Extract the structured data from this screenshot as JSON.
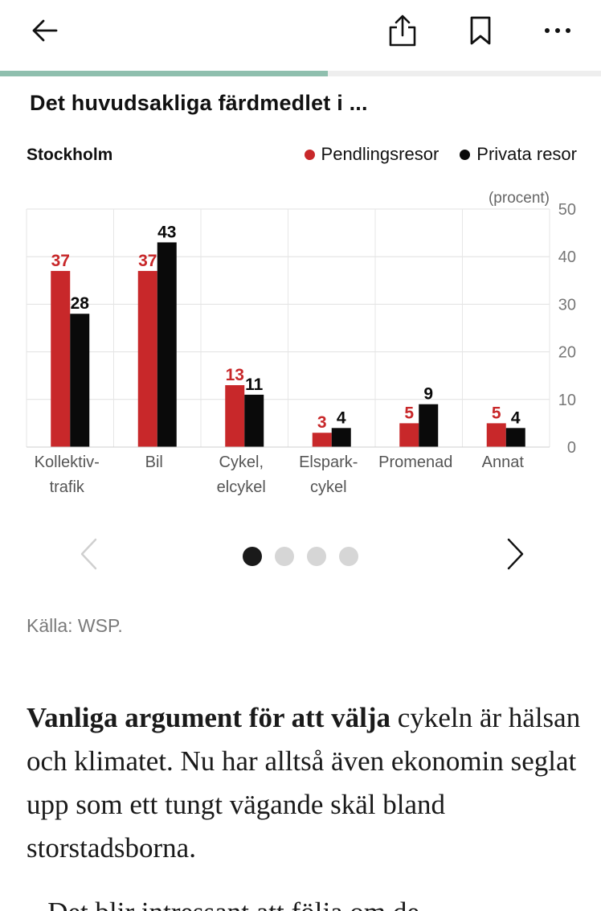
{
  "toolbar": {
    "back_icon": "arrow-left-icon",
    "share_icon": "share-icon",
    "bookmark_icon": "bookmark-icon",
    "more_icon": "more-horizontal-icon"
  },
  "reading_progress": 0.545,
  "chart": {
    "title": "Det huvudsakliga färdmedlet i ...",
    "subtitle": "Stockholm",
    "legend": [
      "Pendlingsresor",
      "Privata resor"
    ]
  },
  "chart_data": {
    "type": "bar",
    "title": "Det huvudsakliga färdmedlet i ...",
    "subtitle": "Stockholm",
    "unit_label": "(procent)",
    "categories": [
      [
        "Kollektiv-",
        "trafik"
      ],
      [
        "Bil"
      ],
      [
        "Cykel,",
        "elcykel"
      ],
      [
        "Elspark-",
        "cykel"
      ],
      [
        "Promenad"
      ],
      [
        "Annat"
      ]
    ],
    "series": [
      {
        "name": "Pendlingsresor",
        "color": "#c8282a",
        "values": [
          37,
          37,
          13,
          3,
          5,
          5
        ]
      },
      {
        "name": "Privata resor",
        "color": "#0a0a0a",
        "values": [
          28,
          43,
          11,
          4,
          9,
          4
        ]
      }
    ],
    "yticks": [
      0,
      10,
      20,
      30,
      40,
      50
    ],
    "ylim": [
      0,
      50
    ],
    "grid": true,
    "legend_position": "top-right"
  },
  "carousel": {
    "prev_icon": "chevron-left-icon",
    "next_icon": "chevron-right-icon",
    "page_count": 4,
    "active_index": 0
  },
  "source": "Källa: WSP.",
  "article": {
    "lead_bold": "Vanliga argument för att välja",
    "lead_rest": " cykeln är hälsan och klimatet. Nu har alltså även ekonomin seglat upp som ett tungt vägande skäl bland storstadsborna.",
    "next_paragraph_start": "– Det blir intressant att följa om de"
  }
}
